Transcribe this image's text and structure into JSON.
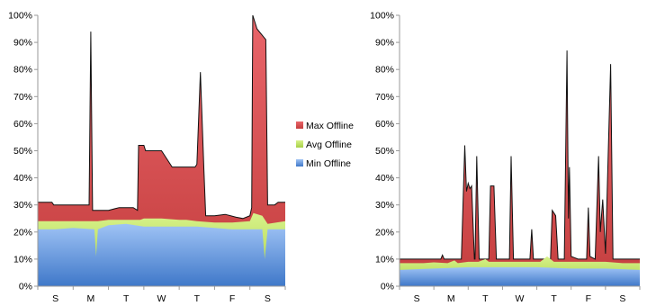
{
  "colors": {
    "max_top": "#e9656a",
    "max_bottom": "#c43e3e",
    "avg_top": "#d8f28a",
    "avg_bottom": "#a6d047",
    "min_top": "#9fc3f5",
    "min_bottom": "#3f78c9",
    "max_outline": "#111111"
  },
  "legend": [
    {
      "key": "max",
      "label": "Max Offline"
    },
    {
      "key": "avg",
      "label": "Avg Offline"
    },
    {
      "key": "min",
      "label": "Min Offline"
    }
  ],
  "chart_data": [
    {
      "type": "area",
      "stacked": true,
      "title": "",
      "xlabel": "",
      "ylabel": "",
      "ylim": [
        0,
        100
      ],
      "yticks": [
        "0%",
        "10%",
        "20%",
        "30%",
        "40%",
        "50%",
        "60%",
        "70%",
        "80%",
        "90%",
        "100%"
      ],
      "categories": [
        "S",
        "M",
        "T",
        "W",
        "T",
        "F",
        "S"
      ],
      "x_range": [
        0,
        7
      ],
      "series": [
        {
          "key": "min",
          "name": "Min Offline",
          "points": [
            [
              0,
              21
            ],
            [
              0.5,
              21
            ],
            [
              1.0,
              21.5
            ],
            [
              1.6,
              21
            ],
            [
              1.65,
              11
            ],
            [
              1.7,
              21
            ],
            [
              2.0,
              22.5
            ],
            [
              2.5,
              23
            ],
            [
              3.0,
              22
            ],
            [
              3.5,
              22
            ],
            [
              4.0,
              22
            ],
            [
              4.5,
              22
            ],
            [
              5.0,
              21.5
            ],
            [
              5.5,
              21
            ],
            [
              6.0,
              21
            ],
            [
              6.35,
              21
            ],
            [
              6.42,
              10
            ],
            [
              6.5,
              21
            ],
            [
              7.0,
              21
            ]
          ]
        },
        {
          "key": "avg",
          "name": "Avg Offline",
          "points": [
            [
              0,
              24
            ],
            [
              0.5,
              24
            ],
            [
              1.0,
              24
            ],
            [
              1.6,
              24
            ],
            [
              1.7,
              24
            ],
            [
              2.0,
              24.5
            ],
            [
              2.5,
              24.5
            ],
            [
              2.9,
              24.5
            ],
            [
              3.0,
              25
            ],
            [
              3.5,
              25
            ],
            [
              4.0,
              24.5
            ],
            [
              4.2,
              24.5
            ],
            [
              4.5,
              24
            ],
            [
              5.0,
              23.5
            ],
            [
              5.5,
              23.5
            ],
            [
              6.0,
              24
            ],
            [
              6.1,
              27
            ],
            [
              6.35,
              26
            ],
            [
              6.5,
              23
            ],
            [
              7.0,
              24
            ]
          ]
        },
        {
          "key": "max",
          "name": "Max Offline",
          "points": [
            [
              0,
              31
            ],
            [
              0.4,
              31
            ],
            [
              0.45,
              30
            ],
            [
              1.0,
              30
            ],
            [
              1.3,
              30
            ],
            [
              1.45,
              30
            ],
            [
              1.5,
              94
            ],
            [
              1.55,
              28
            ],
            [
              2.0,
              28
            ],
            [
              2.3,
              29
            ],
            [
              2.7,
              29
            ],
            [
              2.82,
              28
            ],
            [
              2.85,
              52
            ],
            [
              3.0,
              52
            ],
            [
              3.05,
              50
            ],
            [
              3.5,
              50
            ],
            [
              3.8,
              44
            ],
            [
              4.2,
              44
            ],
            [
              4.45,
              44
            ],
            [
              4.5,
              45
            ],
            [
              4.6,
              79
            ],
            [
              4.7,
              43
            ],
            [
              4.75,
              26
            ],
            [
              5.0,
              26
            ],
            [
              5.3,
              26.5
            ],
            [
              5.6,
              25.5
            ],
            [
              5.8,
              25
            ],
            [
              6.0,
              26
            ],
            [
              6.05,
              29
            ],
            [
              6.08,
              100
            ],
            [
              6.2,
              95
            ],
            [
              6.45,
              91
            ],
            [
              6.5,
              30
            ],
            [
              6.7,
              30
            ],
            [
              6.8,
              31
            ],
            [
              7.0,
              31
            ]
          ]
        }
      ]
    },
    {
      "type": "area",
      "stacked": true,
      "title": "",
      "xlabel": "",
      "ylabel": "",
      "ylim": [
        0,
        100
      ],
      "yticks": [
        "0%",
        "10%",
        "20%",
        "30%",
        "40%",
        "50%",
        "60%",
        "70%",
        "80%",
        "90%",
        "100%"
      ],
      "categories": [
        "S",
        "M",
        "T",
        "W",
        "T",
        "F",
        "S"
      ],
      "x_range": [
        0,
        7
      ],
      "series": [
        {
          "key": "min",
          "name": "Min Offline",
          "points": [
            [
              0,
              6
            ],
            [
              1.0,
              6.5
            ],
            [
              2.0,
              7
            ],
            [
              3.0,
              7
            ],
            [
              4.0,
              7
            ],
            [
              5.0,
              6.5
            ],
            [
              6.0,
              6.5
            ],
            [
              7.0,
              6
            ]
          ]
        },
        {
          "key": "avg",
          "name": "Avg Offline",
          "points": [
            [
              0,
              8.5
            ],
            [
              0.7,
              8.5
            ],
            [
              1.0,
              8.8
            ],
            [
              1.4,
              8.5
            ],
            [
              1.6,
              9.5
            ],
            [
              1.7,
              8.5
            ],
            [
              2.0,
              9
            ],
            [
              2.3,
              9
            ],
            [
              2.5,
              10
            ],
            [
              2.6,
              9
            ],
            [
              3.0,
              9
            ],
            [
              3.5,
              9
            ],
            [
              4.0,
              9
            ],
            [
              4.1,
              9
            ],
            [
              4.3,
              11
            ],
            [
              4.5,
              9
            ],
            [
              5.0,
              9
            ],
            [
              5.6,
              9
            ],
            [
              6.0,
              9
            ],
            [
              6.5,
              8.5
            ],
            [
              7.0,
              8.5
            ]
          ]
        },
        {
          "key": "max",
          "name": "Max Offline",
          "points": [
            [
              0,
              10
            ],
            [
              0.5,
              10
            ],
            [
              1.0,
              10
            ],
            [
              1.2,
              10
            ],
            [
              1.25,
              11.5
            ],
            [
              1.3,
              10
            ],
            [
              1.5,
              10
            ],
            [
              1.8,
              10
            ],
            [
              1.9,
              52
            ],
            [
              1.95,
              35
            ],
            [
              2.0,
              38
            ],
            [
              2.05,
              36
            ],
            [
              2.1,
              37
            ],
            [
              2.18,
              10
            ],
            [
              2.2,
              10
            ],
            [
              2.25,
              48
            ],
            [
              2.32,
              10
            ],
            [
              2.6,
              10
            ],
            [
              2.65,
              37
            ],
            [
              2.75,
              37
            ],
            [
              2.82,
              10
            ],
            [
              3.0,
              10
            ],
            [
              3.2,
              10
            ],
            [
              3.25,
              48
            ],
            [
              3.32,
              10
            ],
            [
              3.6,
              10
            ],
            [
              3.8,
              10
            ],
            [
              3.85,
              21
            ],
            [
              3.9,
              10
            ],
            [
              4.2,
              10
            ],
            [
              4.4,
              10
            ],
            [
              4.45,
              28
            ],
            [
              4.55,
              26
            ],
            [
              4.62,
              10
            ],
            [
              4.8,
              10
            ],
            [
              4.88,
              87
            ],
            [
              4.92,
              25
            ],
            [
              4.95,
              44
            ],
            [
              5.0,
              11
            ],
            [
              5.2,
              10
            ],
            [
              5.45,
              10
            ],
            [
              5.5,
              29
            ],
            [
              5.55,
              11
            ],
            [
              5.7,
              10
            ],
            [
              5.8,
              48
            ],
            [
              5.85,
              20
            ],
            [
              5.92,
              32
            ],
            [
              6.0,
              12
            ],
            [
              6.15,
              82
            ],
            [
              6.22,
              10
            ],
            [
              6.4,
              10
            ],
            [
              6.7,
              10
            ],
            [
              7.0,
              10
            ]
          ]
        }
      ]
    }
  ]
}
